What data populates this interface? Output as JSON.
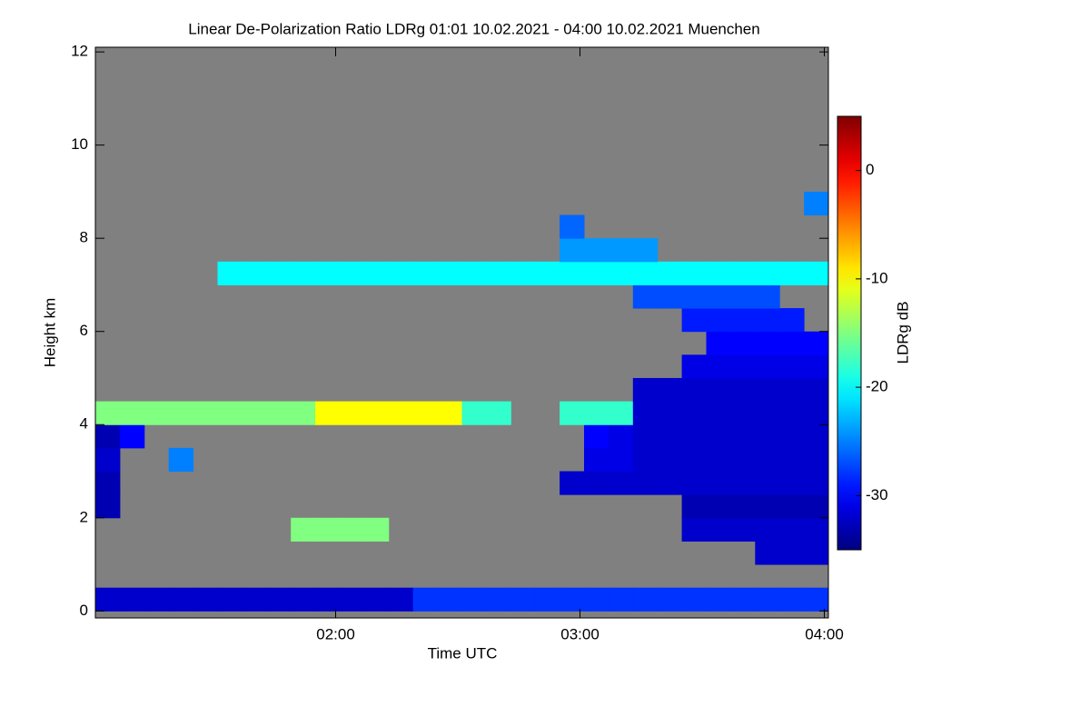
{
  "chart_data": {
    "type": "heatmap",
    "title": "Linear De-Polarization Ratio LDRg   01:01 10.02.2021 - 04:00 10.02.2021 Muenchen",
    "xlabel": "Time UTC",
    "ylabel": "Height km",
    "colorbar_label": "LDRg dB",
    "colormap": "jet",
    "background": "#808080",
    "xlim": [
      61,
      241
    ],
    "xticks": [
      {
        "value": 120,
        "label": "02:00"
      },
      {
        "value": 180,
        "label": "03:00"
      },
      {
        "value": 240,
        "label": "04:00"
      }
    ],
    "ylim": [
      -0.15,
      12.1
    ],
    "yticks": [
      0,
      2,
      4,
      6,
      8,
      10,
      12
    ],
    "clim": [
      -35,
      5
    ],
    "cticks": [
      0,
      -10,
      -20,
      -30
    ],
    "x_edges": [
      61,
      67,
      73,
      79,
      85,
      91,
      97,
      103,
      109,
      115,
      121,
      127,
      133,
      139,
      145,
      151,
      157,
      163,
      169,
      175,
      181,
      187,
      193,
      199,
      205,
      211,
      217,
      223,
      229,
      235,
      241
    ],
    "y_edges": [
      0,
      0.5,
      1,
      1.5,
      2,
      2.5,
      3,
      3.5,
      4,
      4.5,
      5,
      5.5,
      6,
      6.5,
      7,
      7.5,
      8,
      8.5,
      9
    ],
    "z": [
      [
        -32,
        -32,
        -32,
        -32,
        -32,
        -32,
        -32,
        -32,
        -32,
        -32,
        -32,
        -32,
        -32,
        -28,
        -28,
        -28,
        -28,
        -28,
        -28,
        -28,
        -28,
        -28,
        -28,
        -28,
        -28,
        -28,
        -28,
        -28,
        -28,
        -28
      ],
      [
        null,
        null,
        null,
        null,
        null,
        null,
        null,
        null,
        null,
        null,
        null,
        null,
        null,
        null,
        null,
        null,
        null,
        null,
        null,
        null,
        null,
        null,
        null,
        null,
        null,
        null,
        null,
        null,
        null,
        null
      ],
      [
        null,
        null,
        null,
        null,
        null,
        null,
        null,
        null,
        null,
        null,
        null,
        null,
        null,
        null,
        null,
        null,
        null,
        null,
        null,
        null,
        null,
        null,
        null,
        null,
        null,
        null,
        null,
        -32,
        -32,
        -32
      ],
      [
        null,
        null,
        null,
        null,
        null,
        null,
        null,
        null,
        -15,
        -15,
        -15,
        -15,
        null,
        null,
        null,
        null,
        null,
        null,
        null,
        null,
        null,
        null,
        null,
        null,
        -32,
        -32,
        -32,
        -32,
        -32,
        -32
      ],
      [
        -33,
        null,
        null,
        null,
        null,
        null,
        null,
        null,
        null,
        null,
        null,
        null,
        null,
        null,
        null,
        null,
        null,
        null,
        null,
        null,
        null,
        null,
        null,
        null,
        -33,
        -33,
        -33,
        -33,
        -33,
        -33
      ],
      [
        -33,
        null,
        null,
        null,
        null,
        null,
        null,
        null,
        null,
        null,
        null,
        null,
        null,
        null,
        null,
        null,
        null,
        null,
        null,
        -32,
        -32,
        -32,
        -32,
        -32,
        -32,
        -32,
        -32,
        -32,
        -32,
        -32
      ],
      [
        -32,
        null,
        null,
        -25,
        null,
        null,
        null,
        null,
        null,
        null,
        null,
        null,
        null,
        null,
        null,
        null,
        null,
        null,
        null,
        null,
        -31,
        -31,
        -32,
        -32,
        -32,
        -32,
        -32,
        -32,
        -32,
        -32
      ],
      [
        -33,
        -30,
        null,
        null,
        null,
        null,
        null,
        null,
        null,
        null,
        null,
        null,
        null,
        null,
        null,
        null,
        null,
        null,
        null,
        null,
        -30,
        -31,
        -32,
        -32,
        -32,
        -32,
        -32,
        -32,
        -32,
        -32
      ],
      [
        -15,
        -15,
        -15,
        -15,
        -15,
        -15,
        -15,
        -15,
        -15,
        -10,
        -10,
        -10,
        -10,
        -10,
        -10,
        -18,
        -18,
        null,
        null,
        -18,
        -18,
        -18,
        -32,
        -32,
        -32,
        -32,
        -32,
        -32,
        -32,
        -32
      ],
      [
        null,
        null,
        null,
        null,
        null,
        null,
        null,
        null,
        null,
        null,
        null,
        null,
        null,
        null,
        null,
        null,
        null,
        null,
        null,
        null,
        null,
        null,
        -32,
        -32,
        -32,
        -32,
        -32,
        -32,
        -32,
        -32
      ],
      [
        null,
        null,
        null,
        null,
        null,
        null,
        null,
        null,
        null,
        null,
        null,
        null,
        null,
        null,
        null,
        null,
        null,
        null,
        null,
        null,
        null,
        null,
        null,
        null,
        -31,
        -31,
        -31,
        -31,
        -31,
        -31
      ],
      [
        null,
        null,
        null,
        null,
        null,
        null,
        null,
        null,
        null,
        null,
        null,
        null,
        null,
        null,
        null,
        null,
        null,
        null,
        null,
        null,
        null,
        null,
        null,
        null,
        null,
        -30,
        -30,
        -30,
        -30,
        -30
      ],
      [
        null,
        null,
        null,
        null,
        null,
        null,
        null,
        null,
        null,
        null,
        null,
        null,
        null,
        null,
        null,
        null,
        null,
        null,
        null,
        null,
        null,
        null,
        null,
        null,
        -29,
        -29,
        -29,
        -29,
        -29,
        null
      ],
      [
        null,
        null,
        null,
        null,
        null,
        null,
        null,
        null,
        null,
        null,
        null,
        null,
        null,
        null,
        null,
        null,
        null,
        null,
        null,
        null,
        null,
        null,
        -27,
        -27,
        -27,
        -27,
        -27,
        -27,
        null,
        null
      ],
      [
        null,
        null,
        null,
        null,
        null,
        -20,
        -20,
        -20,
        -20,
        -20,
        -20,
        -20,
        -20,
        -20,
        -20,
        -20,
        -20,
        -20,
        -20,
        -20,
        -20,
        -20,
        -20,
        -20,
        -20,
        -20,
        -20,
        -20,
        -20,
        -20
      ],
      [
        null,
        null,
        null,
        null,
        null,
        null,
        null,
        null,
        null,
        null,
        null,
        null,
        null,
        null,
        null,
        null,
        null,
        null,
        null,
        -24,
        -24,
        -24,
        -24,
        null,
        null,
        null,
        null,
        null,
        null,
        null
      ],
      [
        null,
        null,
        null,
        null,
        null,
        null,
        null,
        null,
        null,
        null,
        null,
        null,
        null,
        null,
        null,
        null,
        null,
        null,
        null,
        -26,
        null,
        null,
        null,
        null,
        null,
        null,
        null,
        null,
        null,
        null
      ],
      [
        null,
        null,
        null,
        null,
        null,
        null,
        null,
        null,
        null,
        null,
        null,
        null,
        null,
        null,
        null,
        null,
        null,
        null,
        null,
        null,
        null,
        null,
        null,
        null,
        null,
        null,
        null,
        null,
        null,
        -25
      ]
    ]
  }
}
